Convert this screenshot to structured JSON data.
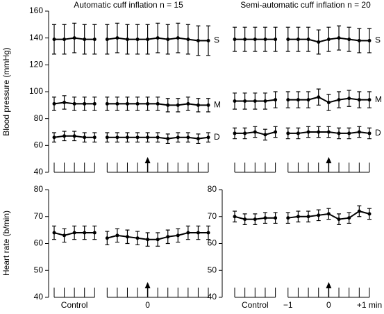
{
  "chart_data": [
    {
      "type": "line",
      "title": "Automatic cuff inflation n = 15",
      "ylabel": "Blood pressure (mmHg)",
      "ylim": [
        40,
        160
      ],
      "yticks": [
        40,
        60,
        80,
        100,
        120,
        140,
        160
      ],
      "series": [
        {
          "name": "S",
          "color": "#000000",
          "values": [
            139,
            139,
            140,
            139,
            139,
            null,
            139,
            140,
            139,
            139,
            139,
            140,
            139,
            140,
            139,
            138,
            138
          ],
          "errors": [
            11,
            11,
            11,
            11,
            11,
            null,
            11,
            11,
            11,
            11,
            11,
            11,
            11,
            11,
            11,
            11,
            11
          ]
        },
        {
          "name": "M",
          "color": "#000000",
          "values": [
            91,
            92,
            91,
            91,
            91,
            null,
            91,
            91,
            91,
            91,
            91,
            91,
            90,
            90,
            91,
            90,
            90
          ],
          "errors": [
            5,
            5,
            5,
            5,
            5,
            null,
            5,
            5,
            5,
            5,
            5,
            5,
            5,
            5,
            5,
            5,
            5
          ]
        },
        {
          "name": "D",
          "color": "#000000",
          "values": [
            66,
            67,
            67,
            66,
            66,
            null,
            66,
            66,
            66,
            66,
            66,
            66,
            65,
            66,
            66,
            65,
            66
          ],
          "errors": [
            3.5,
            3.5,
            3.5,
            3.5,
            3.5,
            null,
            3.5,
            3.5,
            3.5,
            3.5,
            3.5,
            3.5,
            3.5,
            3.5,
            3.5,
            3.5,
            3.5
          ]
        }
      ]
    },
    {
      "type": "line",
      "title": "Semi-automatic cuff inflation n = 20",
      "ylim": [
        40,
        160
      ],
      "series": [
        {
          "name": "S",
          "color": "#000000",
          "values": [
            139,
            139,
            139,
            139,
            139,
            null,
            139,
            139,
            139,
            137,
            139,
            140,
            139,
            138,
            138
          ],
          "errors": [
            9,
            9,
            9,
            9,
            9,
            null,
            9,
            9,
            9,
            9,
            9,
            9,
            9,
            9,
            9
          ]
        },
        {
          "name": "M",
          "color": "#000000",
          "values": [
            93,
            93,
            93,
            93,
            94,
            null,
            94,
            94,
            94,
            96,
            92,
            94,
            95,
            94,
            94
          ],
          "errors": [
            6,
            6,
            6,
            6,
            6,
            null,
            6,
            6,
            6,
            6,
            6,
            6,
            6,
            6,
            6
          ]
        },
        {
          "name": "D",
          "color": "#000000",
          "values": [
            69,
            69,
            70,
            68,
            70,
            null,
            69,
            69,
            70,
            70,
            70,
            69,
            69,
            70,
            69
          ],
          "errors": [
            4,
            4,
            4,
            4,
            4,
            null,
            4,
            4,
            4,
            4,
            4,
            4,
            4,
            4,
            4
          ]
        }
      ]
    },
    {
      "type": "line",
      "ylabel": "Heart rate (b/min)",
      "ylim": [
        40,
        80
      ],
      "yticks": [
        40,
        50,
        60,
        70,
        80
      ],
      "categories": [
        null,
        null,
        "Control",
        null,
        null,
        null,
        null,
        null,
        null,
        null,
        "0",
        null,
        null,
        null,
        null,
        null,
        null
      ],
      "series": [
        {
          "color": "#000000",
          "values": [
            64,
            63,
            64,
            64,
            64,
            null,
            62,
            63,
            62.5,
            62,
            61.5,
            61.5,
            62.5,
            63,
            64,
            64,
            64
          ],
          "errors": [
            2.5,
            2.5,
            2.5,
            2.5,
            2.5,
            null,
            2.5,
            2.5,
            2.5,
            2.5,
            2.5,
            2.5,
            2.5,
            2.5,
            2.5,
            2.5,
            2.5
          ]
        }
      ]
    },
    {
      "type": "line",
      "ylim": [
        40,
        80
      ],
      "yticks": [
        40,
        50,
        60,
        70,
        80
      ],
      "categories": [
        null,
        null,
        "Control",
        null,
        null,
        null,
        "−1",
        null,
        null,
        null,
        "0",
        null,
        null,
        null,
        "+1 min"
      ],
      "series": [
        {
          "color": "#000000",
          "values": [
            70,
            69,
            69,
            69.5,
            69.5,
            null,
            69.5,
            70,
            70,
            70.5,
            71,
            69,
            69.5,
            72,
            71
          ],
          "errors": [
            2,
            2,
            2,
            2,
            2,
            null,
            2,
            2,
            2,
            2,
            2,
            2,
            2,
            2,
            2
          ]
        }
      ]
    }
  ]
}
